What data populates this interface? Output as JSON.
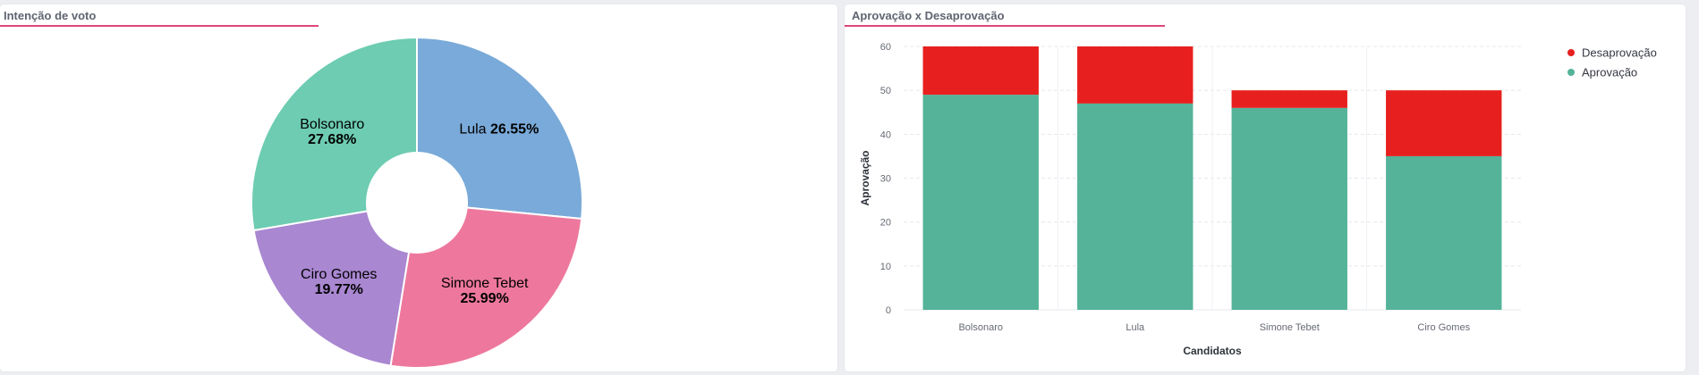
{
  "panels": {
    "pie_title": "Intenção de voto",
    "bar_title": "Aprovação x Desaprovação"
  },
  "chart_data": [
    {
      "type": "pie",
      "donut": true,
      "slices": [
        {
          "label": "Lula",
          "value": 26.55,
          "pct_text": "26.55%",
          "color": "#79aad9"
        },
        {
          "label": "Simone Tebet",
          "value": 25.99,
          "pct_text": "25.99%",
          "color": "#ee789d"
        },
        {
          "label": "Ciro Gomes",
          "value": 19.77,
          "pct_text": "19.77%",
          "color": "#a987d1"
        },
        {
          "label": "Bolsonaro",
          "value": 27.68,
          "pct_text": "27.68%",
          "color": "#6dccb1"
        }
      ]
    },
    {
      "type": "bar",
      "stacked": true,
      "categories": [
        "Bolsonaro",
        "Lula",
        "Simone Tebet",
        "Ciro Gomes"
      ],
      "series": [
        {
          "name": "Aprovação",
          "values": [
            49,
            47,
            46,
            35
          ],
          "color": "#54b399"
        },
        {
          "name": "Desaprovação",
          "values": [
            11,
            13,
            4,
            15
          ],
          "color": "#e7201f"
        }
      ],
      "xlabel": "Candidatos",
      "ylabel": "Aprovação",
      "ylim": [
        0,
        60
      ],
      "yticks": [
        0,
        10,
        20,
        30,
        40,
        50,
        60
      ],
      "grid": true,
      "legend_position": "top-right",
      "legend_order": [
        "Desaprovação",
        "Aprovação"
      ]
    }
  ]
}
